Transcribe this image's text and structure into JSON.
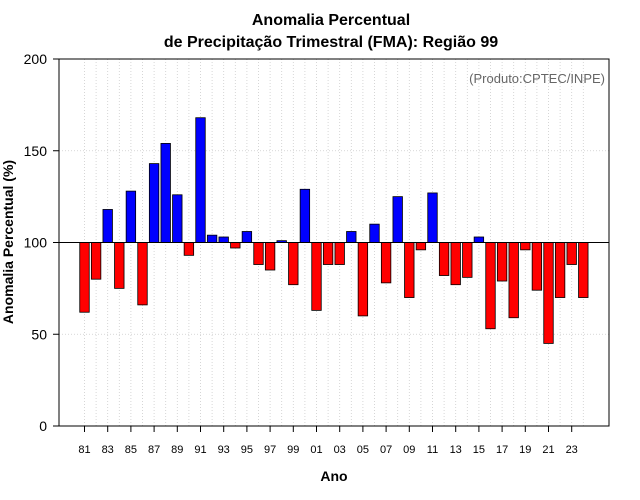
{
  "chart_data": {
    "type": "bar",
    "title": [
      "Anomalia Percentual",
      "de Precipitação Trimestral (FMA): Região 99"
    ],
    "annotation": "(Produto:CPTEC/INPE)",
    "xlabel": "Ano",
    "ylabel": "Anomalia Percentual (%)",
    "ylim": [
      0,
      200
    ],
    "yticks": [
      0,
      50,
      100,
      150,
      200
    ],
    "baseline": 100,
    "grid": true,
    "colors": {
      "above": "#0000ff",
      "below": "#ff0000",
      "edge": "#000000",
      "grid": "#cccccc"
    },
    "categories": [
      "1981",
      "1982",
      "1983",
      "1984",
      "1985",
      "1986",
      "1987",
      "1988",
      "1989",
      "1990",
      "1991",
      "1992",
      "1993",
      "1994",
      "1995",
      "1996",
      "1997",
      "1998",
      "1999",
      "2000",
      "2001",
      "2002",
      "2003",
      "2004",
      "2005",
      "2006",
      "2007",
      "2008",
      "2009",
      "2010",
      "2011",
      "2012",
      "2013",
      "2014",
      "2015",
      "2016",
      "2017",
      "2018",
      "2019",
      "2020",
      "2021",
      "2022",
      "2023",
      "2024"
    ],
    "values": [
      62,
      80,
      118,
      75,
      128,
      66,
      143,
      154,
      126,
      93,
      168,
      104,
      103,
      97,
      106,
      88,
      85,
      101,
      77,
      129,
      63,
      88,
      88,
      106,
      60,
      110,
      78,
      125,
      70,
      96,
      127,
      82,
      77,
      81,
      103,
      53,
      79,
      59,
      96,
      74,
      45,
      70,
      88,
      70
    ],
    "xtick_labels": [
      "81",
      "83",
      "85",
      "87",
      "89",
      "91",
      "93",
      "95",
      "97",
      "99",
      "01",
      "03",
      "05",
      "07",
      "09",
      "11",
      "13",
      "15",
      "17",
      "19",
      "21",
      "23"
    ]
  }
}
